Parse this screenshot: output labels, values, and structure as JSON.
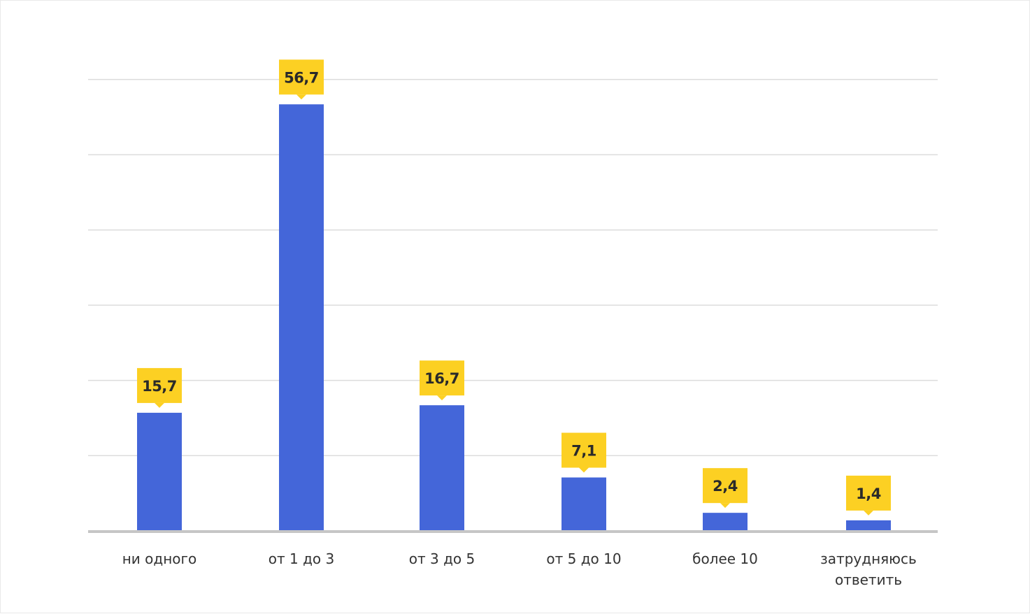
{
  "chart_data": {
    "type": "bar",
    "categories": [
      [
        "ни одного"
      ],
      [
        "от 1 до 3"
      ],
      [
        "от 3 до 5"
      ],
      [
        "от 5 до 10"
      ],
      [
        "более 10"
      ],
      [
        "затрудняюсь",
        "ответить"
      ]
    ],
    "values": [
      15.7,
      56.7,
      16.7,
      7.1,
      2.4,
      1.4
    ],
    "data_labels": [
      "15,7",
      "56,7",
      "16,7",
      "7,1",
      "2,4",
      "1,4"
    ],
    "ylim": [
      0,
      60
    ],
    "grid": true,
    "bar_color": "#4466d9",
    "label_bg_color": "#fcd023",
    "gridline_color": "#dcdcdc",
    "axis_color": "#c6c6c6"
  }
}
